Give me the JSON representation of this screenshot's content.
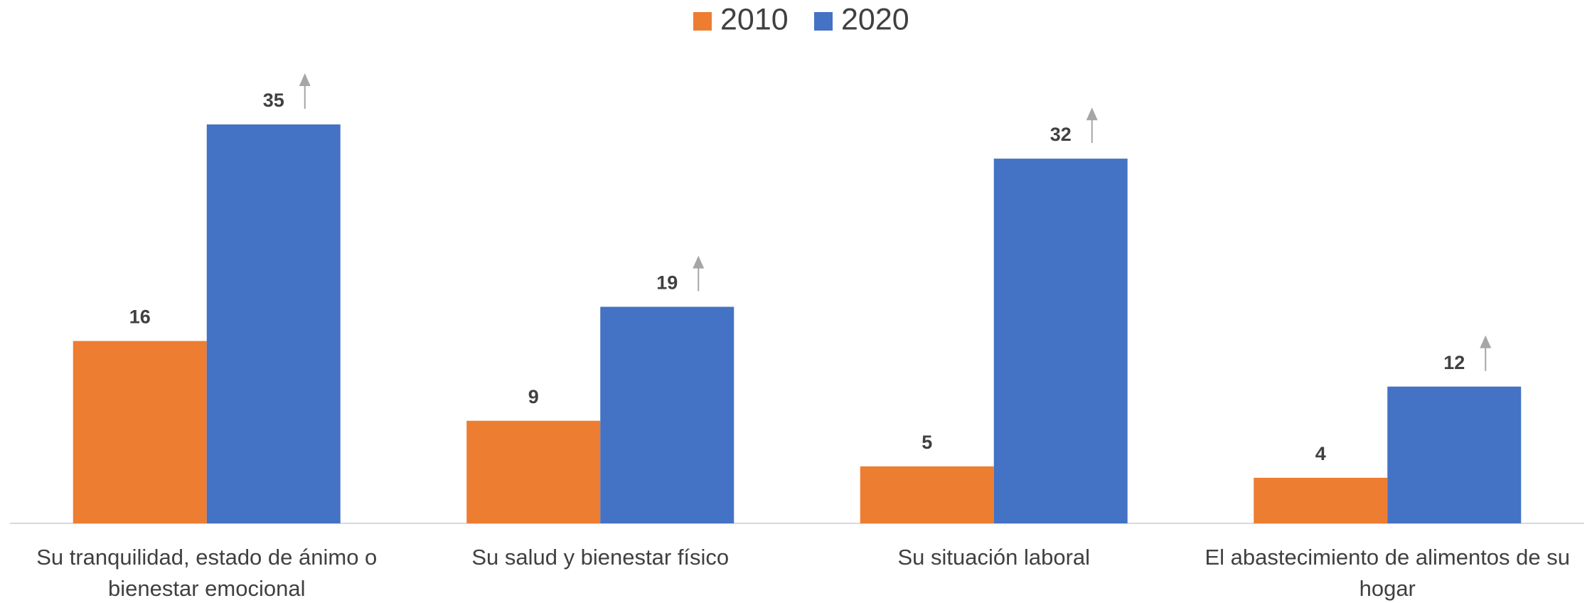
{
  "chart_data": {
    "type": "bar",
    "categories": [
      "Su tranquilidad, estado de ánimo o bienestar emocional",
      "Su salud y bienestar físico",
      "Su situación laboral",
      "El abastecimiento de alimentos de su hogar"
    ],
    "series": [
      {
        "name": "2010",
        "color": "#ed7d31",
        "values": [
          16,
          9,
          5,
          4
        ]
      },
      {
        "name": "2020",
        "color": "#4472c4",
        "values": [
          35,
          19,
          32,
          12
        ]
      }
    ],
    "legend": "top"
  }
}
